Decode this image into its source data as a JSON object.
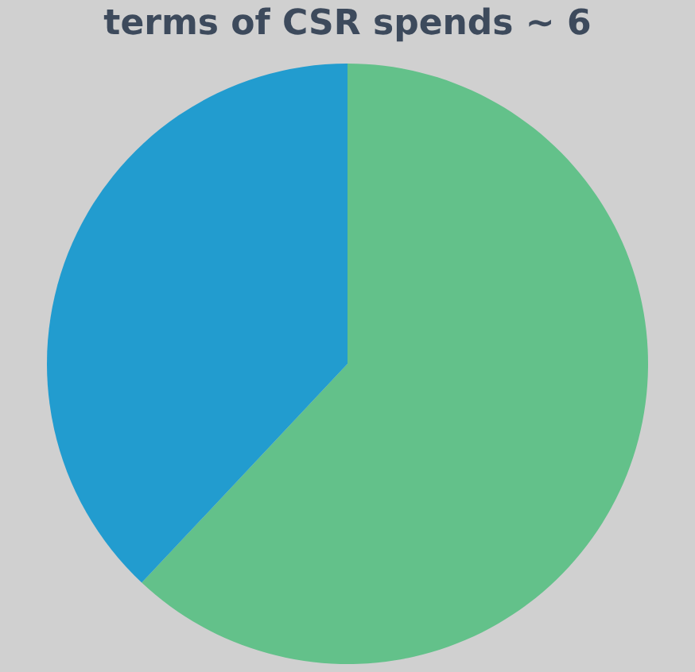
{
  "chart_data": {
    "type": "pie",
    "title": "terms of CSR spends ~ 6",
    "categories": [
      null,
      null
    ],
    "values": [
      62,
      38
    ],
    "colors": [
      "#63c18a",
      "#229ccf"
    ],
    "legend": false
  }
}
